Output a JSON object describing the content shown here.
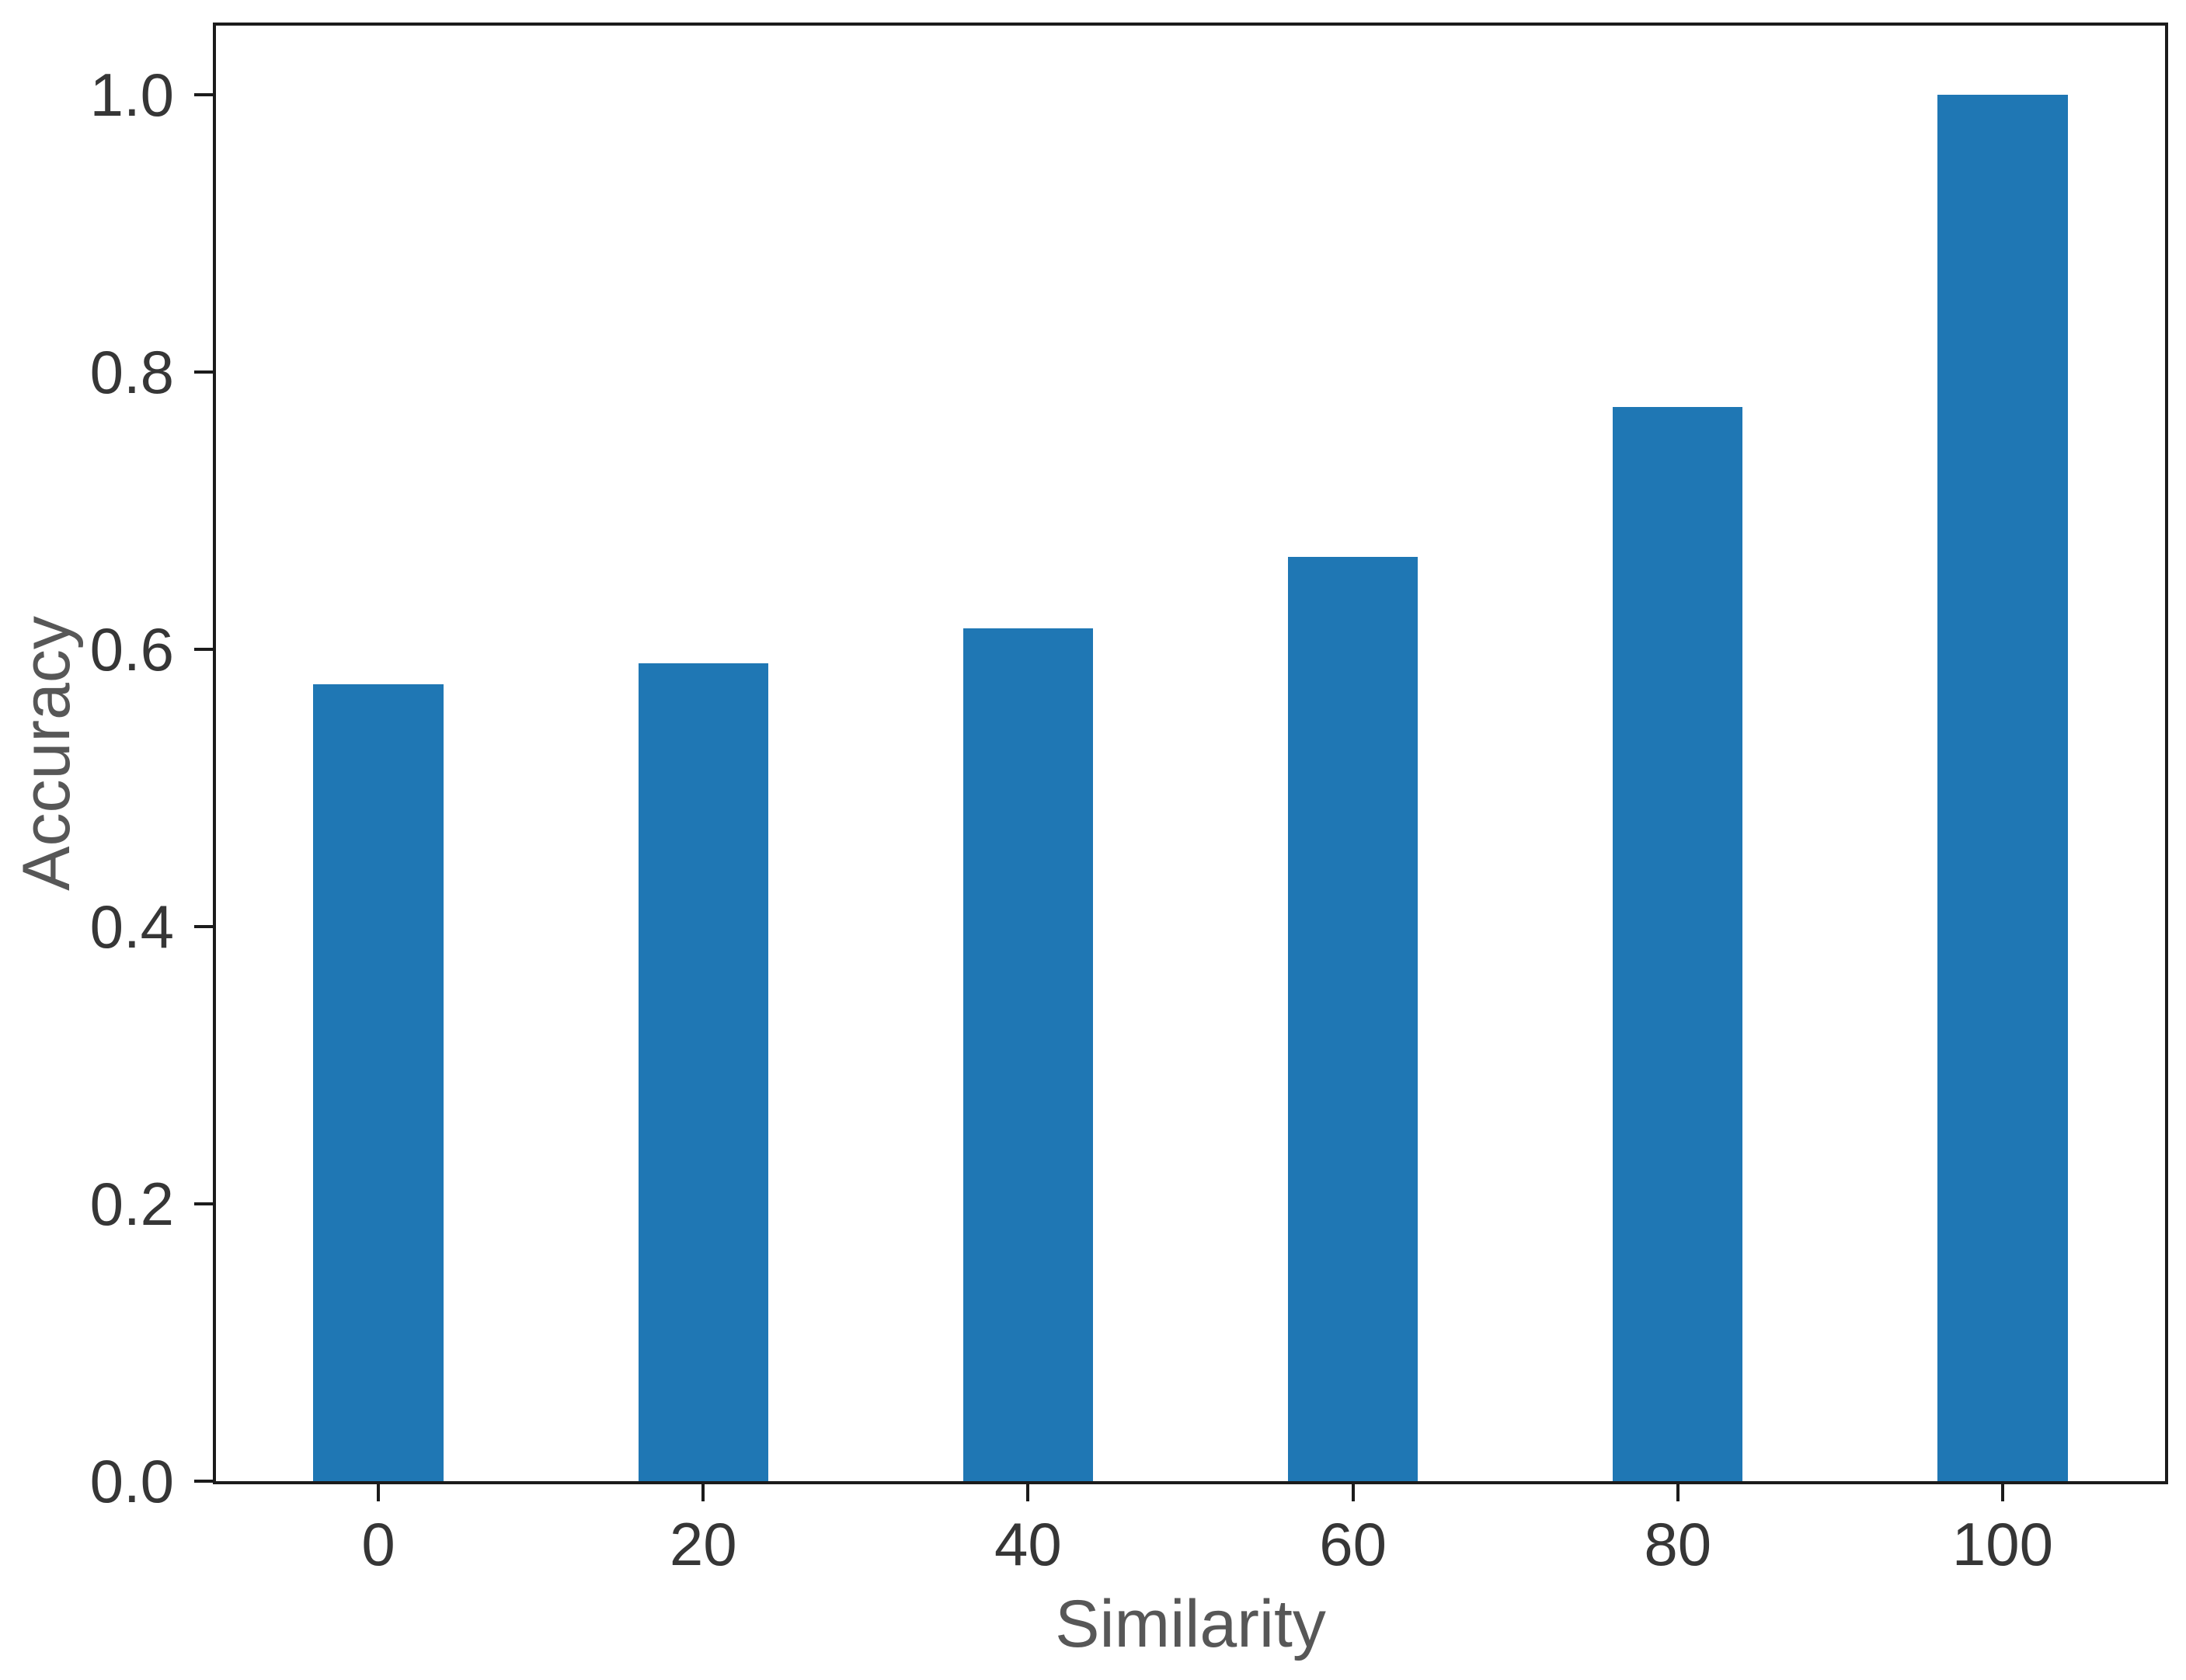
{
  "chart_data": {
    "type": "bar",
    "title": "",
    "xlabel": "Similarity",
    "ylabel": "Accuracy",
    "categories": [
      "0",
      "20",
      "40",
      "60",
      "80",
      "100"
    ],
    "values": [
      0.575,
      0.59,
      0.615,
      0.667,
      0.775,
      1.0
    ],
    "yticks": [
      "0.0",
      "0.2",
      "0.4",
      "0.6",
      "0.8",
      "1.0"
    ],
    "ylim": [
      0,
      1.05
    ],
    "grid": false,
    "legend": null,
    "bar_color": "#1f77b4",
    "spine_color": "#1b1b1b",
    "tick_label_color": "#363636",
    "axis_label_color": "#575757",
    "background_color": "#ffffff",
    "bar_width_fraction": 0.4
  }
}
